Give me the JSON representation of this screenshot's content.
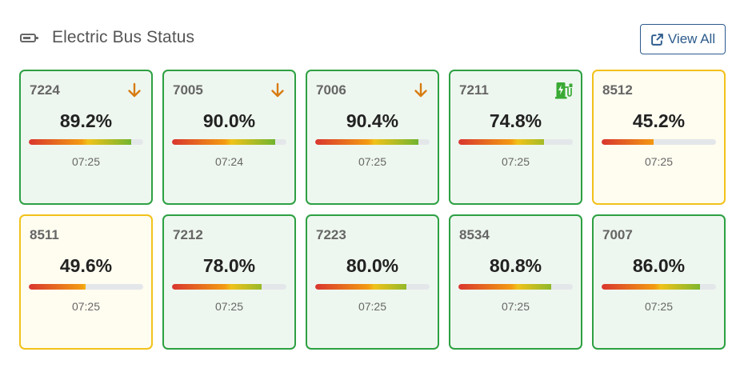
{
  "header": {
    "title": "Electric Bus Status",
    "icon": "battery-icon",
    "view_all_label": "View All",
    "view_all_icon": "external-link-icon"
  },
  "colors": {
    "ok_border": "#2ea043",
    "warn_border": "#f2c21b",
    "discharging_icon": "#d77b12",
    "charging_icon": "#3aaa35",
    "link": "#2c5a8c"
  },
  "buses": [
    {
      "id": "7224",
      "percent": "89.2%",
      "level": 0.892,
      "time": "07:25",
      "status": "discharging",
      "status_icon": "arrow-down-icon",
      "state": "ok"
    },
    {
      "id": "7005",
      "percent": "90.0%",
      "level": 0.9,
      "time": "07:24",
      "status": "discharging",
      "status_icon": "arrow-down-icon",
      "state": "ok"
    },
    {
      "id": "7006",
      "percent": "90.4%",
      "level": 0.904,
      "time": "07:25",
      "status": "discharging",
      "status_icon": "arrow-down-icon",
      "state": "ok"
    },
    {
      "id": "7211",
      "percent": "74.8%",
      "level": 0.748,
      "time": "07:25",
      "status": "charging",
      "status_icon": "ev-charging-icon",
      "state": "ok"
    },
    {
      "id": "8512",
      "percent": "45.2%",
      "level": 0.452,
      "time": "07:25",
      "status": "",
      "status_icon": "",
      "state": "warn"
    },
    {
      "id": "8511",
      "percent": "49.6%",
      "level": 0.496,
      "time": "07:25",
      "status": "",
      "status_icon": "",
      "state": "warn"
    },
    {
      "id": "7212",
      "percent": "78.0%",
      "level": 0.78,
      "time": "07:25",
      "status": "",
      "status_icon": "",
      "state": "ok"
    },
    {
      "id": "7223",
      "percent": "80.0%",
      "level": 0.8,
      "time": "07:25",
      "status": "",
      "status_icon": "",
      "state": "ok"
    },
    {
      "id": "8534",
      "percent": "80.8%",
      "level": 0.808,
      "time": "07:25",
      "status": "",
      "status_icon": "",
      "state": "ok"
    },
    {
      "id": "7007",
      "percent": "86.0%",
      "level": 0.86,
      "time": "07:25",
      "status": "",
      "status_icon": "",
      "state": "ok"
    }
  ]
}
